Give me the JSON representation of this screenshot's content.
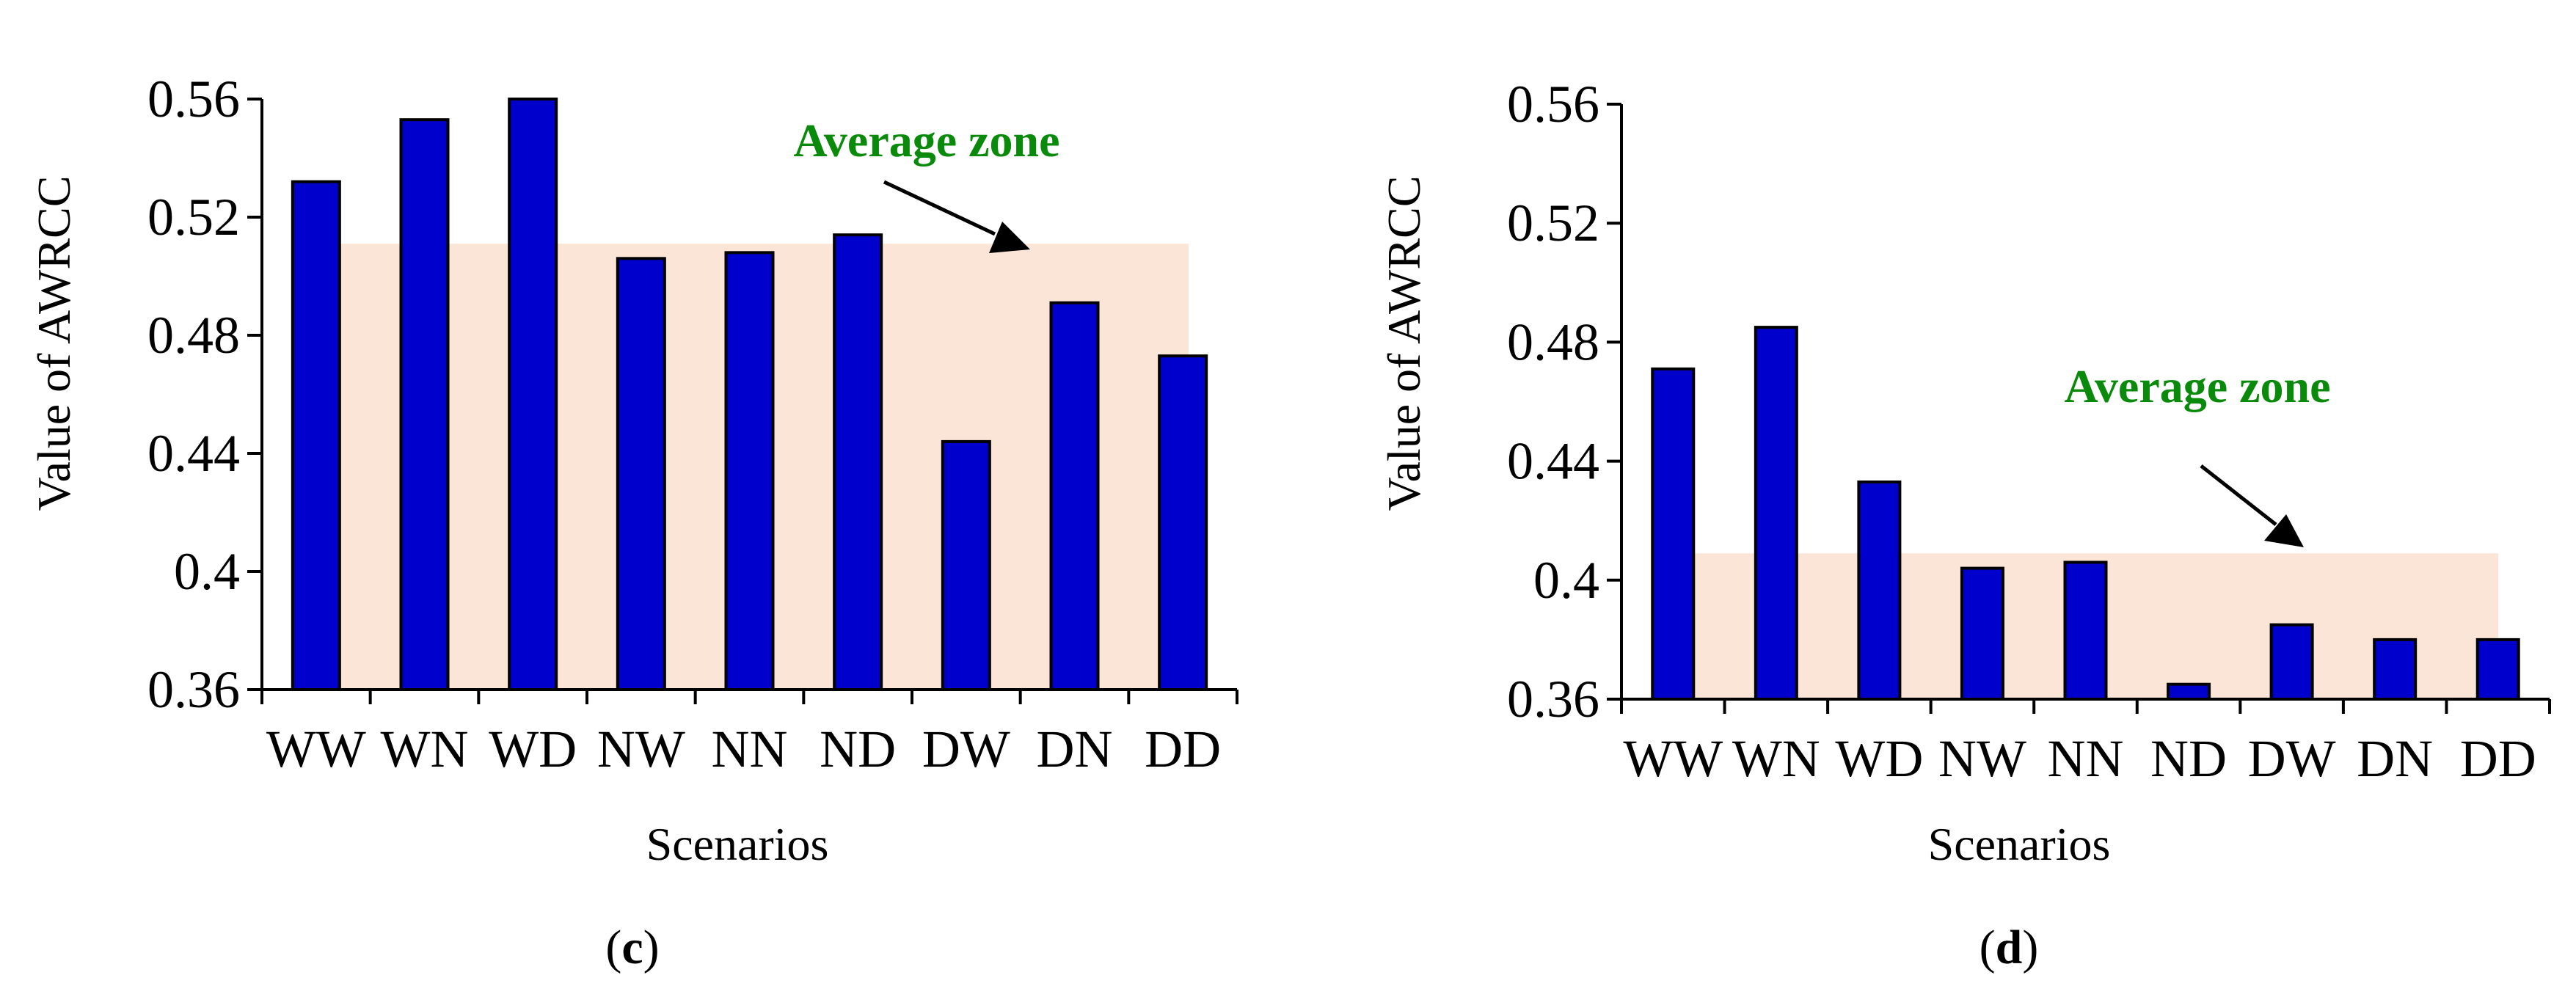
{
  "colors": {
    "bar": "#0000cc",
    "zone_fill": "#fbe5d6",
    "zone_label": "#0a8a0a"
  },
  "chart_data": [
    {
      "type": "bar",
      "panel": "c",
      "caption": {
        "open": "(",
        "letter": "c",
        "close": ")"
      },
      "categories": [
        "WW",
        "WN",
        "WD",
        "NW",
        "NN",
        "ND",
        "DW",
        "DN",
        "DD"
      ],
      "values": [
        0.532,
        0.553,
        0.56,
        0.506,
        0.508,
        0.514,
        0.444,
        0.491,
        0.473
      ],
      "ylim": [
        0.36,
        0.56
      ],
      "yticks": [
        "0.36",
        "0.4",
        "0.44",
        "0.48",
        "0.52",
        "0.56"
      ],
      "ylabel": "Value of AWRCC",
      "xlabel": "Scenarios",
      "average_zone": {
        "label": "Average zone",
        "value": 0.511
      }
    },
    {
      "type": "bar",
      "panel": "d",
      "caption": {
        "open": "(",
        "letter": "d",
        "close": ")"
      },
      "categories": [
        "WW",
        "WN",
        "WD",
        "NW",
        "NN",
        "ND",
        "DW",
        "DN",
        "DD"
      ],
      "values": [
        0.471,
        0.485,
        0.433,
        0.404,
        0.406,
        0.365,
        0.385,
        0.38,
        0.38
      ],
      "ylim": [
        0.36,
        0.56
      ],
      "yticks": [
        "0.36",
        "0.4",
        "0.44",
        "0.48",
        "0.52",
        "0.56"
      ],
      "ylabel": "Value of AWRCC",
      "xlabel": "Scenarios",
      "average_zone": {
        "label": "Average zone",
        "value": 0.409
      }
    }
  ]
}
